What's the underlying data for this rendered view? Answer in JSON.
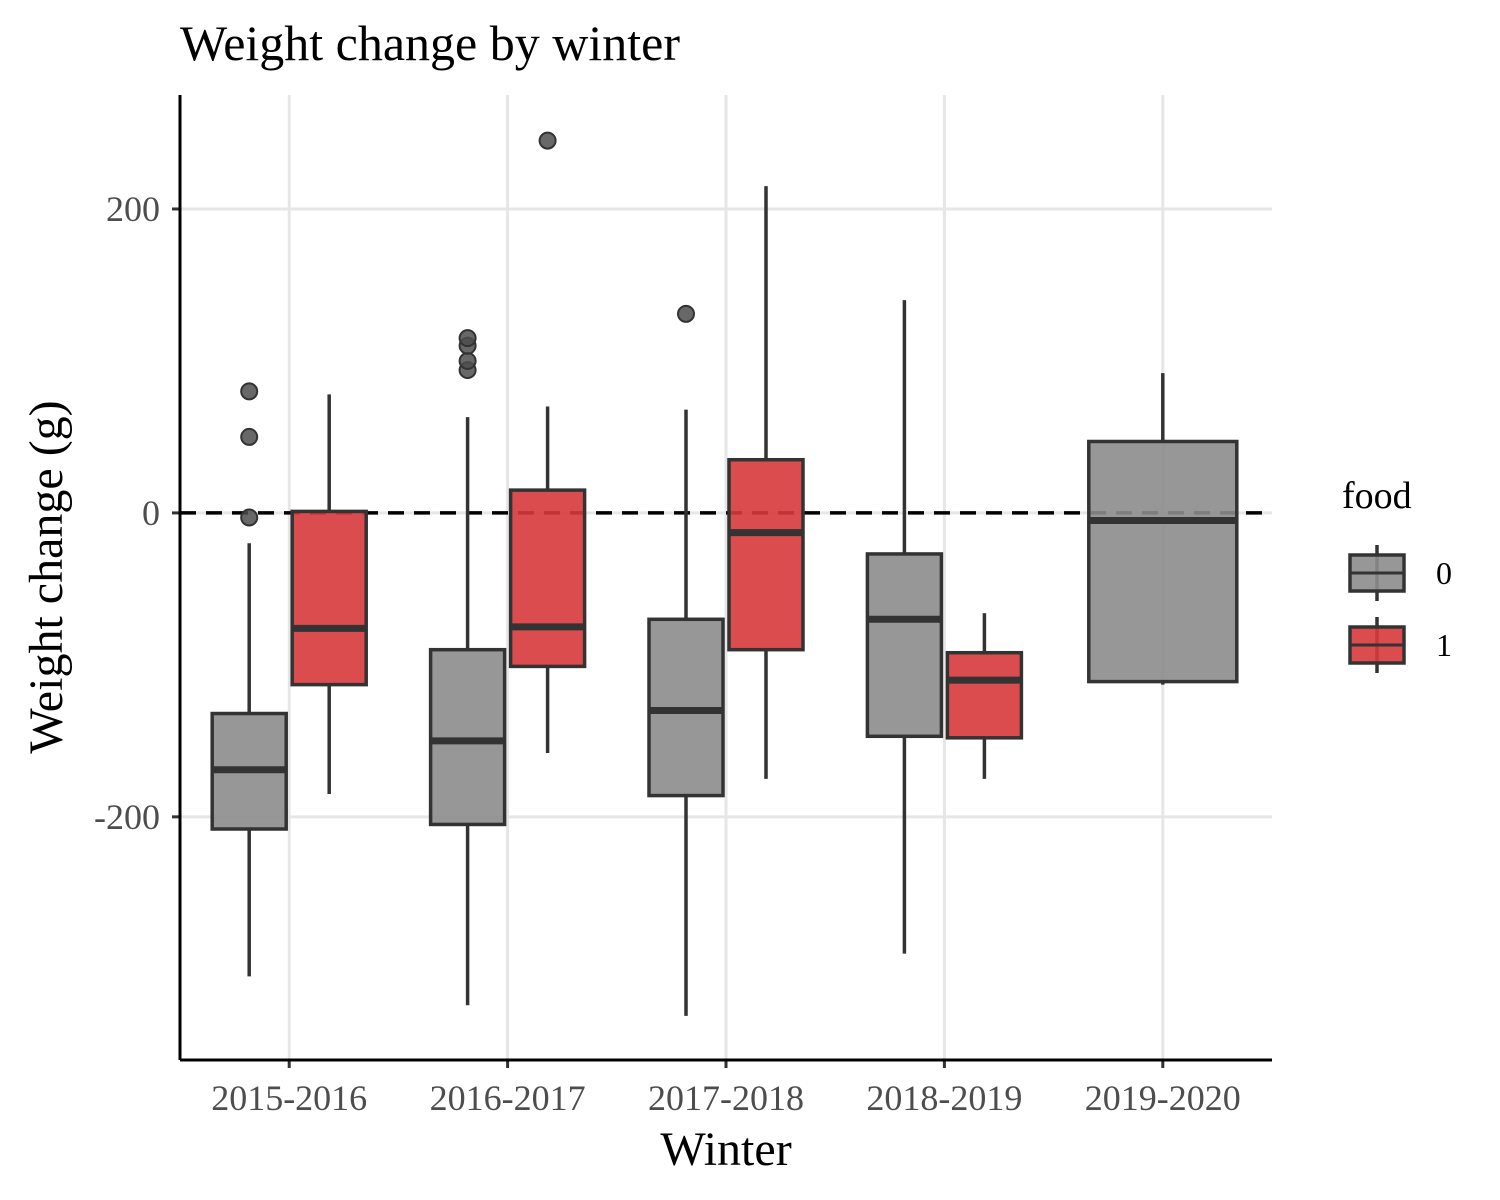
{
  "chart_data": {
    "type": "boxplot",
    "title": "Weight change by winter",
    "xlabel": "Winter",
    "ylabel": "Weight change (g)",
    "categories": [
      "2015-2016",
      "2016-2017",
      "2017-2018",
      "2018-2019",
      "2019-2020"
    ],
    "y_ticks": [
      -200,
      0,
      200
    ],
    "y_tick_labels": [
      "-200",
      "0",
      "200"
    ],
    "ylim": [
      -360,
      275
    ],
    "reference_line": {
      "y": 0,
      "style": "dashed"
    },
    "grid": true,
    "legend": {
      "title": "food",
      "placement": "right",
      "entries": [
        "0",
        "1"
      ]
    },
    "colors": {
      "0": "#8c8c8c",
      "1": "#d7393c"
    },
    "series": [
      {
        "name": "0",
        "boxes": [
          {
            "category": "2015-2016",
            "whisker_low": -305,
            "q1": -208,
            "median": -169,
            "q3": -132,
            "whisker_high": -20,
            "outliers": [
              -3,
              50,
              80
            ]
          },
          {
            "category": "2016-2017",
            "whisker_low": -324,
            "q1": -205,
            "median": -150,
            "q3": -90,
            "whisker_high": 63,
            "outliers": [
              94,
              100,
              110,
              115
            ]
          },
          {
            "category": "2017-2018",
            "whisker_low": -331,
            "q1": -186,
            "median": -130,
            "q3": -70,
            "whisker_high": 68,
            "outliers": [
              131
            ]
          },
          {
            "category": "2018-2019",
            "whisker_low": -290,
            "q1": -147,
            "median": -70,
            "q3": -27,
            "whisker_high": 140,
            "outliers": []
          },
          {
            "category": "2019-2020",
            "whisker_low": -113,
            "q1": -111,
            "median": -5,
            "q3": 47,
            "whisker_high": 92,
            "outliers": []
          }
        ]
      },
      {
        "name": "1",
        "boxes": [
          {
            "category": "2015-2016",
            "whisker_low": -185,
            "q1": -113,
            "median": -76,
            "q3": 1,
            "whisker_high": 78,
            "outliers": []
          },
          {
            "category": "2016-2017",
            "whisker_low": -158,
            "q1": -101,
            "median": -75,
            "q3": 15,
            "whisker_high": 70,
            "outliers": [
              245
            ]
          },
          {
            "category": "2017-2018",
            "whisker_low": -175,
            "q1": -90,
            "median": -13,
            "q3": 35,
            "whisker_high": 215,
            "outliers": []
          },
          {
            "category": "2018-2019",
            "whisker_low": -175,
            "q1": -148,
            "median": -110,
            "q3": -92,
            "whisker_high": -66,
            "outliers": []
          }
        ]
      }
    ]
  }
}
